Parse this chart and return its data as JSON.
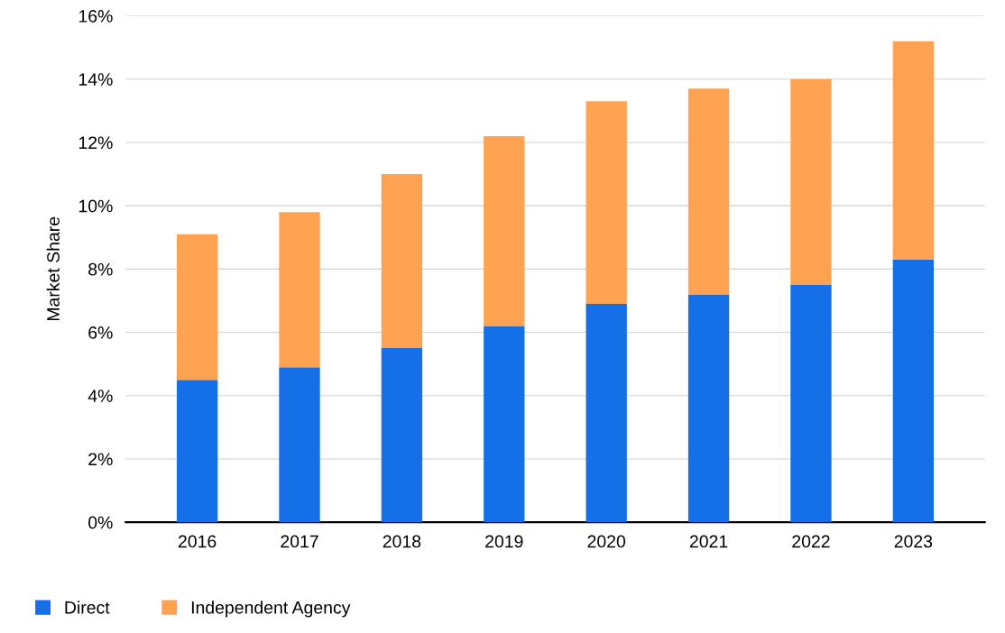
{
  "chart_data": {
    "type": "bar",
    "stacked": true,
    "ylabel": "Market Share",
    "categories": [
      "2016",
      "2017",
      "2018",
      "2019",
      "2020",
      "2021",
      "2022",
      "2023"
    ],
    "series": [
      {
        "name": "Direct",
        "color": "#1570e8",
        "values": [
          4.5,
          4.9,
          5.5,
          6.2,
          6.9,
          7.2,
          7.5,
          8.3
        ]
      },
      {
        "name": "Independent Agency",
        "color": "#ffa353",
        "values": [
          4.6,
          4.9,
          5.5,
          6.0,
          6.4,
          6.5,
          6.5,
          6.9
        ]
      }
    ],
    "ylim": [
      0,
      16
    ],
    "yticks": [
      {
        "value": 0,
        "label": "0%"
      },
      {
        "value": 2,
        "label": "2%"
      },
      {
        "value": 4,
        "label": "4%"
      },
      {
        "value": 6,
        "label": "6%"
      },
      {
        "value": 8,
        "label": "8%"
      },
      {
        "value": 10,
        "label": "10%"
      },
      {
        "value": 12,
        "label": "12%"
      },
      {
        "value": 14,
        "label": "14%"
      },
      {
        "value": 16,
        "label": "16%"
      }
    ],
    "grid": "y",
    "legend": "bottom left"
  }
}
